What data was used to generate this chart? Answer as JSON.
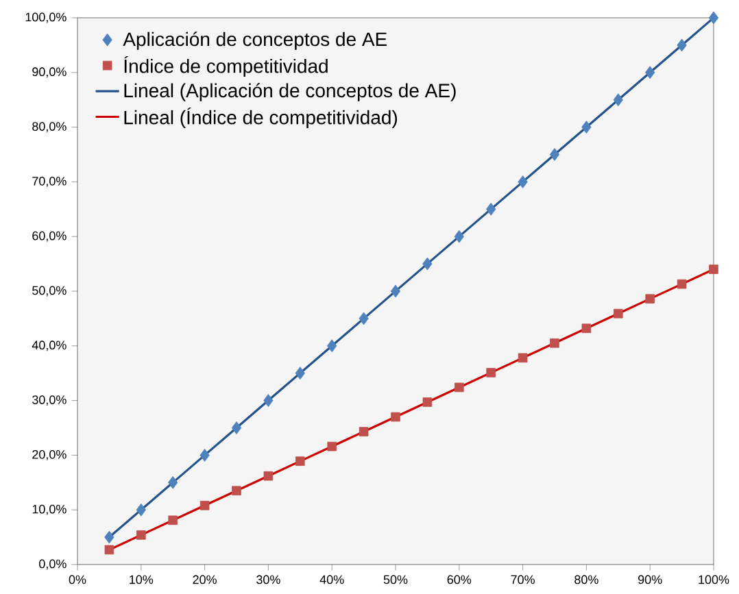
{
  "chart_data": {
    "type": "scatter",
    "xlim": [
      0,
      100
    ],
    "ylim": [
      0,
      100
    ],
    "xticks": [
      {
        "value": 0,
        "label": "0%"
      },
      {
        "value": 10,
        "label": "10%"
      },
      {
        "value": 20,
        "label": "20%"
      },
      {
        "value": 30,
        "label": "30%"
      },
      {
        "value": 40,
        "label": "40%"
      },
      {
        "value": 50,
        "label": "50%"
      },
      {
        "value": 60,
        "label": "60%"
      },
      {
        "value": 70,
        "label": "70%"
      },
      {
        "value": 80,
        "label": "80%"
      },
      {
        "value": 90,
        "label": "90%"
      },
      {
        "value": 100,
        "label": "100%"
      }
    ],
    "yticks": [
      {
        "value": 0,
        "label": "0,0%"
      },
      {
        "value": 10,
        "label": "10,0%"
      },
      {
        "value": 20,
        "label": "20,0%"
      },
      {
        "value": 30,
        "label": "30,0%"
      },
      {
        "value": 40,
        "label": "40,0%"
      },
      {
        "value": 50,
        "label": "50,0%"
      },
      {
        "value": 60,
        "label": "60,0%"
      },
      {
        "value": 70,
        "label": "70,0%"
      },
      {
        "value": 80,
        "label": "80,0%"
      },
      {
        "value": 90,
        "label": "90,0%"
      },
      {
        "value": 100,
        "label": "100,0%"
      }
    ],
    "grid": false,
    "legend": "top left",
    "x": [
      5,
      10,
      15,
      20,
      25,
      30,
      35,
      40,
      45,
      50,
      55,
      60,
      65,
      70,
      75,
      80,
      85,
      90,
      95,
      100
    ],
    "series": [
      {
        "name": "Aplicación de conceptos de AE",
        "marker": "diamond",
        "color": "#4f81bd",
        "values": [
          5,
          10,
          15,
          20,
          25,
          30,
          35,
          40,
          45,
          50,
          55,
          60,
          65,
          70,
          75,
          80,
          85,
          90,
          95,
          100
        ]
      },
      {
        "name": "Índice de competitividad",
        "marker": "square",
        "color": "#c0504d",
        "values": [
          2.7,
          5.4,
          8.1,
          10.8,
          13.5,
          16.2,
          18.9,
          21.6,
          24.3,
          27,
          29.7,
          32.4,
          35.1,
          37.8,
          40.5,
          43.2,
          45.9,
          48.6,
          51.3,
          54
        ]
      },
      {
        "name": "Lineal (Aplicación de conceptos de AE)",
        "type": "line",
        "marker": "none",
        "line_style": "solid",
        "color": "#24528a",
        "values": [
          5,
          10,
          15,
          20,
          25,
          30,
          35,
          40,
          45,
          50,
          55,
          60,
          65,
          70,
          75,
          80,
          85,
          90,
          95,
          100
        ]
      },
      {
        "name": "Lineal (Índice de competitividad)",
        "type": "line",
        "marker": "none",
        "line_style": "solid",
        "color": "#cc0000",
        "values": [
          2.7,
          5.4,
          8.1,
          10.8,
          13.5,
          16.2,
          18.9,
          21.6,
          24.3,
          27,
          29.7,
          32.4,
          35.1,
          37.8,
          40.5,
          43.2,
          45.9,
          48.6,
          51.3,
          54
        ]
      }
    ]
  }
}
